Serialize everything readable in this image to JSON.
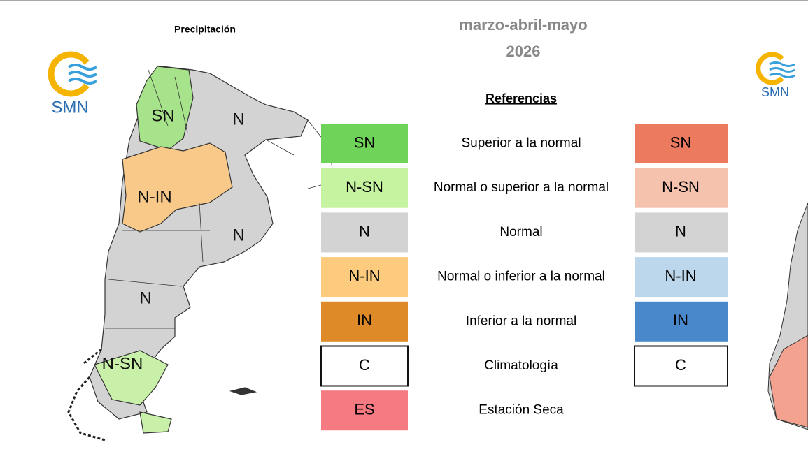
{
  "header": {
    "left_title": "Precipitación",
    "period": "marzo-abril-mayo",
    "year": "2026"
  },
  "logos": [
    {
      "label": "SMN"
    },
    {
      "label": "SMN"
    }
  ],
  "map": {
    "labels": [
      "SN",
      "N",
      "N-IN",
      "N",
      "N",
      "N-SN"
    ]
  },
  "legend": {
    "title": "Referencias",
    "rows": [
      {
        "left": "SN",
        "text": "Superior a la normal",
        "right": "SN"
      },
      {
        "left": "N-SN",
        "text": "Normal o superior a la normal",
        "right": "N-SN"
      },
      {
        "left": "N",
        "text": "Normal",
        "right": "N"
      },
      {
        "left": "N-IN",
        "text": "Normal o inferior a la normal",
        "right": "N-IN"
      },
      {
        "left": "IN",
        "text": "Inferior a la normal",
        "right": "IN"
      },
      {
        "left": "C",
        "text": "Climatología",
        "right": "C"
      },
      {
        "left": "ES",
        "text": "Estación Seca"
      }
    ]
  }
}
